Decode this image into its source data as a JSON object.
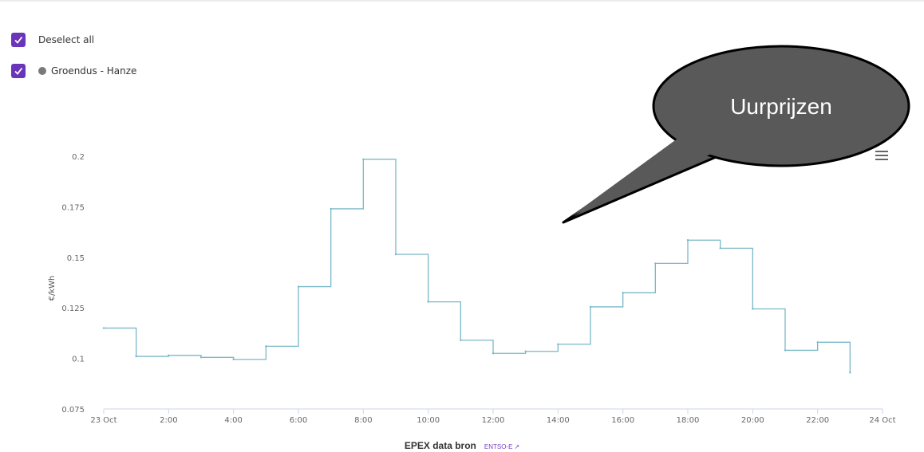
{
  "filters": {
    "deselect_all_label": "Deselect all",
    "series_label": "Groendus - Hanze",
    "series_dot_color": "#7a7a7a",
    "checkbox_color": "#6a35b8",
    "deselect_all_checked": true,
    "series_checked": true
  },
  "annotation": {
    "text": "Uurprijzen"
  },
  "menu": {
    "icon": "hamburger-menu-icon"
  },
  "footer": {
    "source_label": "EPEX data bron",
    "link_label": "ENTSO-E",
    "link_icon": "external-link-icon"
  },
  "chart_data": {
    "type": "line",
    "step": true,
    "title": "",
    "xlabel": "",
    "ylabel": "€/kWh",
    "ylim": [
      0.075,
      0.2
    ],
    "x_unit": "hour of day, 23 Oct",
    "x_range": [
      0,
      24
    ],
    "x_tick_values": [
      0,
      2,
      4,
      6,
      8,
      10,
      12,
      14,
      16,
      18,
      20,
      22,
      24
    ],
    "x_tick_labels": [
      "23 Oct",
      "2:00",
      "4:00",
      "6:00",
      "8:00",
      "10:00",
      "12:00",
      "14:00",
      "16:00",
      "18:00",
      "20:00",
      "22:00",
      "24 Oct"
    ],
    "y_ticks": [
      0.075,
      0.1,
      0.125,
      0.15,
      0.175,
      0.2
    ],
    "y_tick_labels": [
      "0.075",
      "0.1",
      "0.125",
      "0.15",
      "0.175",
      "0.2"
    ],
    "grid": false,
    "series": [
      {
        "color": "#7ab8c8",
        "x": [
          0,
          1,
          2,
          3,
          4,
          5,
          6,
          7,
          8,
          9,
          10,
          11,
          12,
          13,
          14,
          15,
          16,
          17,
          18,
          19,
          20,
          21,
          22,
          23
        ],
        "values": [
          0.115,
          0.101,
          0.1015,
          0.1005,
          0.0995,
          0.106,
          0.1355,
          0.174,
          0.1985,
          0.1515,
          0.128,
          0.109,
          0.1025,
          0.1035,
          0.107,
          0.1255,
          0.1325,
          0.147,
          0.1585,
          0.1545,
          0.1245,
          0.104,
          0.108,
          0.093
        ]
      }
    ]
  }
}
